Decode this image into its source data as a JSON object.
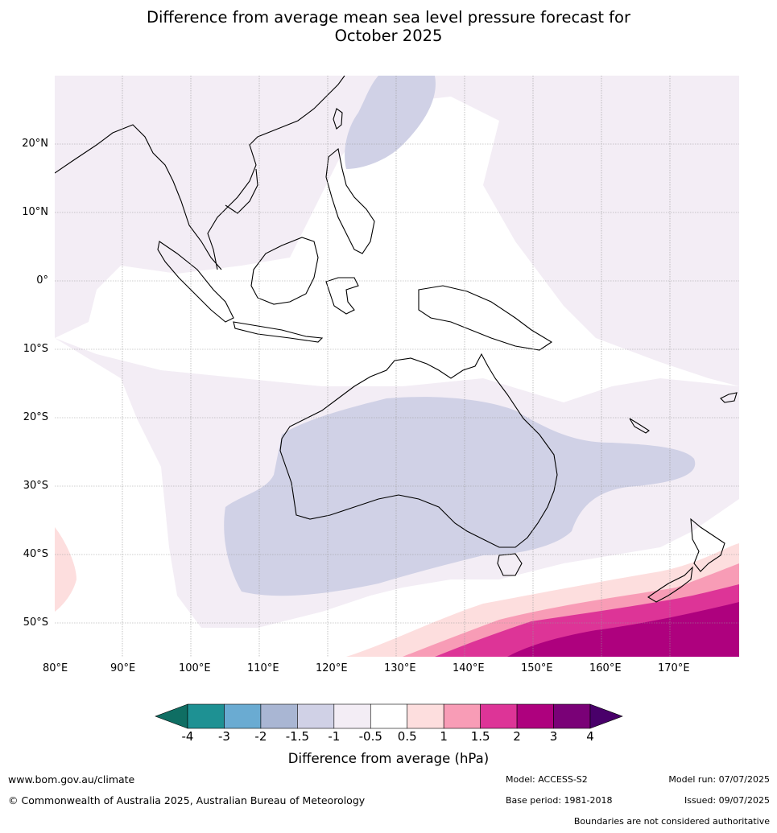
{
  "title_line1": "Difference from average mean sea level pressure forecast for",
  "title_line2": "October 2025",
  "map": {
    "lon_labels": [
      "80°E",
      "90°E",
      "100°E",
      "110°E",
      "120°E",
      "130°E",
      "140°E",
      "150°E",
      "160°E",
      "170°E"
    ],
    "lat_labels": [
      "20°N",
      "10°N",
      "0°",
      "10°S",
      "20°S",
      "30°S",
      "40°S",
      "50°S"
    ]
  },
  "colorbar": {
    "ticks": [
      "-4",
      "-3",
      "-2",
      "-1.5",
      "-1",
      "-0.5",
      "0.5",
      "1",
      "1.5",
      "2",
      "3",
      "4"
    ],
    "colors": [
      "#0f6e63",
      "#1e9193",
      "#6aabd2",
      "#a9b6d3",
      "#d0d1e6",
      "#f3edf5",
      "#ffffff",
      "#fddede",
      "#f89cb6",
      "#dd3497",
      "#ae017e",
      "#7a0177",
      "#49006a"
    ],
    "title": "Difference from average (hPa)"
  },
  "footer": {
    "website": "www.bom.gov.au/climate",
    "copyright": "© Commonwealth of Australia 2025, Australian Bureau of Meteorology",
    "model": "Model: ACCESS-S2",
    "base_period": "Base period: 1981-2018",
    "model_run": "Model run: 07/07/2025",
    "issued": "Issued: 09/07/2025",
    "disclaimer": "Boundaries are not considered authoritative"
  }
}
